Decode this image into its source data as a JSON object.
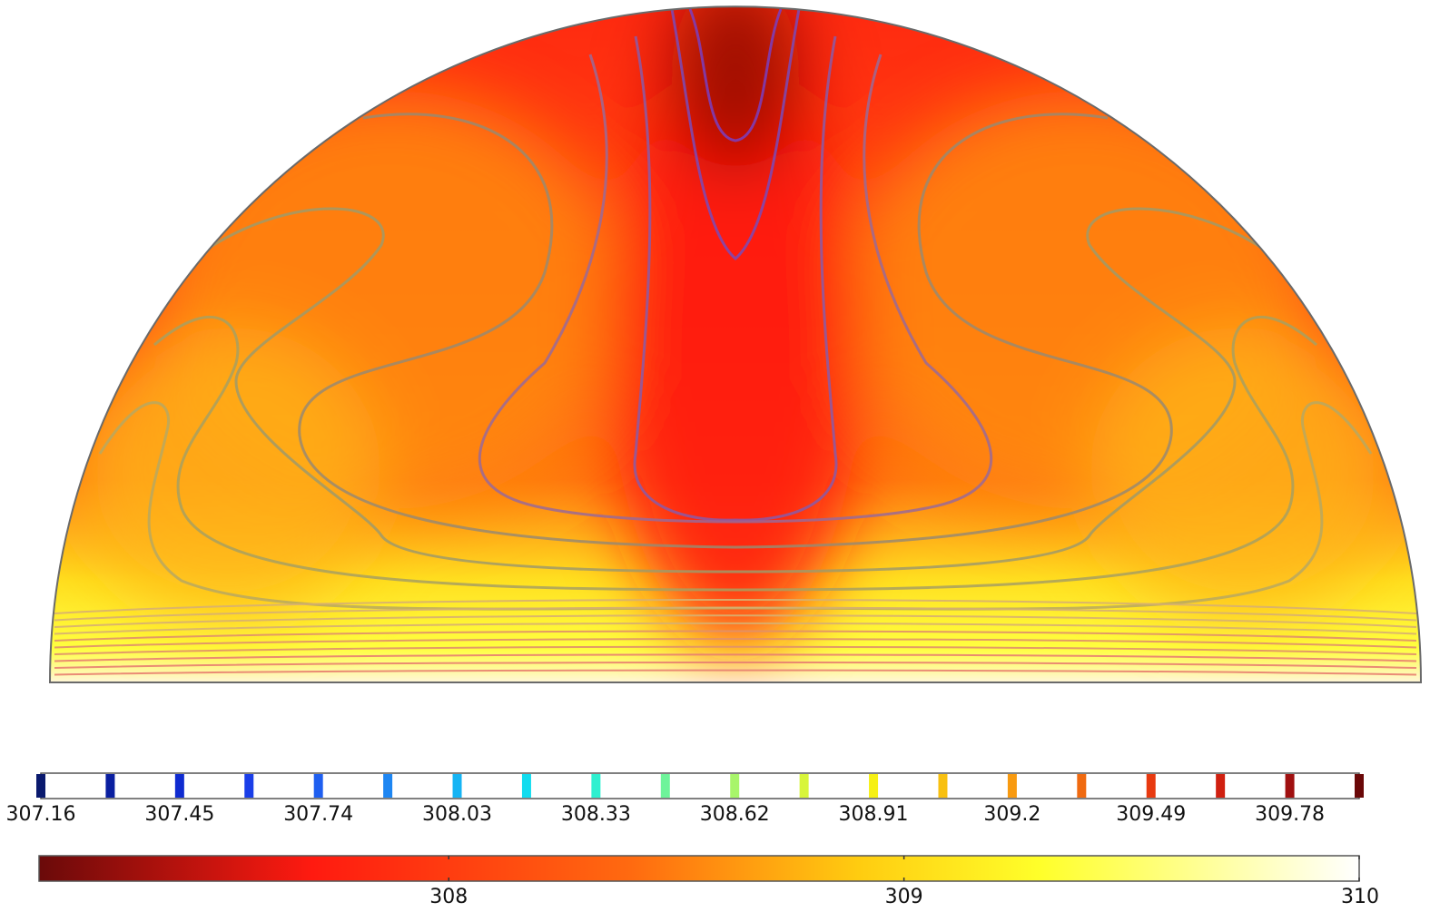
{
  "chart_data": {
    "type": "heatmap",
    "title": "",
    "xlabel": "",
    "ylabel": "",
    "description_values": {
      "field_range": [
        307.16,
        310.0
      ],
      "hot_core_value": 307.1,
      "boundary_value": 310.0
    },
    "contour_legend": {
      "levels": [
        307.16,
        307.31,
        307.45,
        307.6,
        307.74,
        307.89,
        308.03,
        308.18,
        308.33,
        308.47,
        308.62,
        308.76,
        308.91,
        309.05,
        309.2,
        309.34,
        309.49,
        309.63,
        309.78,
        309.92
      ],
      "level_colors": [
        "#0a1a6e",
        "#0a1fa0",
        "#0f2bd0",
        "#1a3ee8",
        "#1f5ff0",
        "#1e86f2",
        "#16b4f4",
        "#12dcef",
        "#2ff0d0",
        "#6ef49a",
        "#a8f56a",
        "#d8f53a",
        "#f6f014",
        "#f8c010",
        "#f89a10",
        "#f06a10",
        "#e83a10",
        "#d02010",
        "#a01010",
        "#6a0808"
      ],
      "tick_labels": [
        "307.16",
        "307.45",
        "307.74",
        "308.03",
        "308.33",
        "308.62",
        "308.91",
        "309.2",
        "309.49",
        "309.78"
      ]
    },
    "color_legend": {
      "range": [
        307.1,
        310.0
      ],
      "tick_labels": [
        "308",
        "309",
        "310"
      ],
      "tick_values": [
        308,
        309,
        310
      ],
      "gradient_stops": [
        {
          "value": 307.1,
          "color": "#6a0a0a"
        },
        {
          "value": 307.7,
          "color": "#ff1a10"
        },
        {
          "value": 308.4,
          "color": "#ff6a10"
        },
        {
          "value": 308.9,
          "color": "#ffcc10"
        },
        {
          "value": 309.3,
          "color": "#ffff2a"
        },
        {
          "value": 310.0,
          "color": "#ffffff"
        }
      ]
    },
    "grid": false,
    "legend_placement": "bottom"
  }
}
